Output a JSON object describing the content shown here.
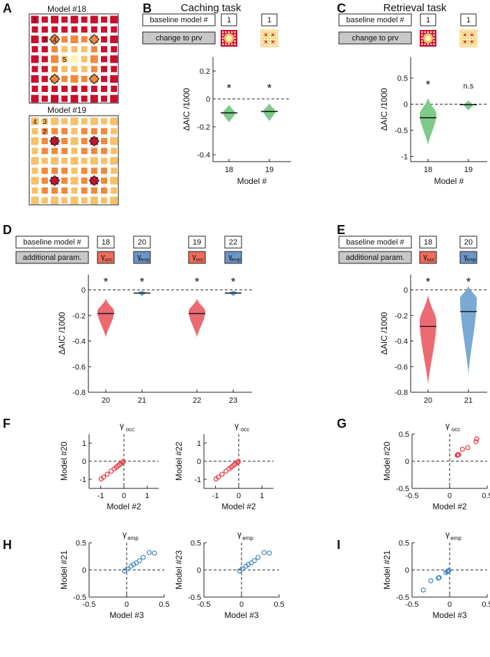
{
  "panel_labels": [
    "A",
    "B",
    "C",
    "D",
    "E",
    "F",
    "G",
    "H",
    "I"
  ],
  "colors": {
    "dark_red": "#c8102e",
    "orange": "#f0893b",
    "light_orange": "#f7c06a",
    "pale_yellow": "#fdf5b6",
    "violin_green": "#7fc98a",
    "violin_red": "#ec6b73",
    "violin_blue": "#7aaad3",
    "scatter_red": "#e8383f",
    "scatter_blue": "#3e86c2",
    "param_red": "#ee6c5a",
    "param_blue": "#6b96c8",
    "gray_box": "#c8c8c8",
    "mean_line": "#111111"
  },
  "panelA": {
    "model18": {
      "title": "Model #18",
      "labels": [
        "1",
        "2",
        "4",
        "5"
      ]
    },
    "model19": {
      "title": "Model #19",
      "labels": [
        "4",
        "3",
        "2"
      ]
    }
  },
  "panelB": {
    "title": "Caching task",
    "baseline_label": "baseline model #",
    "change_label": "change to prv",
    "baselines": [
      "1",
      "1"
    ]
  },
  "panelC": {
    "title": "Retrieval task",
    "baseline_label": "baseline model #",
    "change_label": "change to prv",
    "baselines": [
      "1",
      "1"
    ]
  },
  "panelD": {
    "baseline_label": "baseline model #",
    "param_label": "additional param.",
    "baselines": [
      "18",
      "20",
      "19",
      "22"
    ],
    "params": [
      {
        "base": "γ",
        "sub": "occ"
      },
      {
        "base": "γ",
        "sub": "emp"
      },
      {
        "base": "γ",
        "sub": "occ"
      },
      {
        "base": "γ",
        "sub": "emp"
      }
    ]
  },
  "panelE": {
    "baseline_label": "baseline model #",
    "param_label": "additional param.",
    "baselines": [
      "18",
      "20"
    ],
    "params": [
      {
        "base": "γ",
        "sub": "occ"
      },
      {
        "base": "γ",
        "sub": "emp"
      }
    ]
  },
  "chart_data": [
    {
      "id": "B",
      "type": "violin",
      "title": "Caching task",
      "xlabel": "Model #",
      "ylabel": "ΔAIC /1000",
      "ylim": [
        -0.45,
        0.3
      ],
      "yticks": [
        -0.4,
        -0.2,
        0,
        0.2
      ],
      "ytick_labels": [
        "-0.4",
        "-0.2",
        "0",
        "0.2"
      ],
      "categories": [
        "18",
        "19"
      ],
      "means": [
        -0.1,
        -0.09
      ],
      "mins": [
        -0.17,
        -0.16
      ],
      "maxs": [
        -0.04,
        -0.03
      ],
      "widest": [
        -0.1,
        -0.09
      ],
      "significance": [
        "*",
        "*"
      ]
    },
    {
      "id": "C",
      "type": "violin",
      "title": "Retrieval task",
      "xlabel": "Model #",
      "ylabel": "ΔAIC /1000",
      "ylim": [
        -1.1,
        0.9
      ],
      "yticks": [
        -1,
        -0.5,
        0,
        0.5
      ],
      "ytick_labels": [
        "-1",
        "-0.5",
        "0",
        "0.5"
      ],
      "categories": [
        "18",
        "19"
      ],
      "means": [
        -0.26,
        -0.01
      ],
      "mins": [
        -0.78,
        -0.12
      ],
      "maxs": [
        0.12,
        0.07
      ],
      "widest": [
        -0.2,
        -0.01
      ],
      "significance": [
        "*",
        "n.s"
      ]
    },
    {
      "id": "D",
      "type": "violin",
      "xlabel": "",
      "ylabel": "ΔAIC /1000",
      "ylim": [
        -0.8,
        0.12
      ],
      "yticks": [
        -0.8,
        -0.6,
        -0.4,
        -0.2,
        0
      ],
      "ytick_labels": [
        "-0.8",
        "-0.6",
        "-0.4",
        "-0.2",
        "0"
      ],
      "categories": [
        "20",
        "21",
        "22",
        "23"
      ],
      "means": [
        -0.185,
        -0.025,
        -0.185,
        -0.025
      ],
      "mins": [
        -0.37,
        -0.05,
        -0.37,
        -0.05
      ],
      "maxs": [
        -0.07,
        -0.005,
        -0.07,
        -0.005
      ],
      "widest": [
        -0.17,
        -0.02,
        -0.17,
        -0.02
      ],
      "significance": [
        "*",
        "*",
        "*",
        "*"
      ]
    },
    {
      "id": "E",
      "type": "violin",
      "xlabel": "",
      "ylabel": "ΔAIC /1000",
      "ylim": [
        -0.8,
        0.12
      ],
      "yticks": [
        -0.8,
        -0.6,
        -0.4,
        -0.2,
        0
      ],
      "ytick_labels": [
        "-0.8",
        "-0.6",
        "-0.4",
        "-0.2",
        "0"
      ],
      "categories": [
        "20",
        "21"
      ],
      "means": [
        -0.285,
        -0.17
      ],
      "mins": [
        -0.74,
        -0.66
      ],
      "maxs": [
        -0.04,
        0.03
      ],
      "widest": [
        -0.25,
        -0.07
      ],
      "significance": [
        "*",
        "*"
      ]
    },
    {
      "id": "F1",
      "type": "scatter",
      "title": {
        "base": "γ",
        "sub": "occ"
      },
      "xlabel": "Model #2",
      "ylabel": "Model #20",
      "xlim": [
        -1.5,
        1.5
      ],
      "ylim": [
        -1.5,
        1.5
      ],
      "xticks": [
        -1,
        0,
        1
      ],
      "xtick_labels": [
        "-1",
        "0",
        "1"
      ],
      "yticks": [
        -1,
        0,
        1
      ],
      "ytick_labels": [
        "-1",
        "0",
        "1"
      ],
      "x": [
        -0.98,
        -0.88,
        -0.72,
        -0.55,
        -0.42,
        -0.33,
        -0.25,
        -0.18,
        -0.12,
        -0.06,
        -0.02
      ],
      "y": [
        -0.98,
        -0.88,
        -0.72,
        -0.55,
        -0.42,
        -0.33,
        -0.25,
        -0.18,
        -0.12,
        -0.06,
        -0.02
      ]
    },
    {
      "id": "F2",
      "type": "scatter",
      "title": {
        "base": "γ",
        "sub": "occ"
      },
      "xlabel": "Model #2",
      "ylabel": "Model #22",
      "xlim": [
        -1.5,
        1.5
      ],
      "ylim": [
        -1.5,
        1.5
      ],
      "xticks": [
        -1,
        0,
        1
      ],
      "xtick_labels": [
        "-1",
        "0",
        "1"
      ],
      "yticks": [
        -1,
        0,
        1
      ],
      "ytick_labels": [
        "-1",
        "0",
        "1"
      ],
      "x": [
        -0.98,
        -0.88,
        -0.72,
        -0.55,
        -0.42,
        -0.33,
        -0.25,
        -0.18,
        -0.12,
        -0.06,
        -0.02
      ],
      "y": [
        -0.98,
        -0.88,
        -0.72,
        -0.55,
        -0.42,
        -0.33,
        -0.25,
        -0.18,
        -0.12,
        -0.06,
        -0.02
      ]
    },
    {
      "id": "G",
      "type": "scatter",
      "title": {
        "base": "γ",
        "sub": "occ"
      },
      "xlabel": "Model #2",
      "ylabel": "Model #20",
      "xlim": [
        -0.5,
        0.5
      ],
      "ylim": [
        -0.5,
        0.5
      ],
      "xticks": [
        -0.5,
        0,
        0.5
      ],
      "xtick_labels": [
        "-0.5",
        "0",
        "0.5"
      ],
      "yticks": [
        -0.5,
        0,
        0.5
      ],
      "ytick_labels": [
        "-0.5",
        "0",
        "0.5"
      ],
      "x": [
        0.1,
        0.11,
        0.12,
        0.17,
        0.24,
        0.35,
        0.36
      ],
      "y": [
        0.11,
        0.12,
        0.12,
        0.22,
        0.25,
        0.36,
        0.41
      ]
    },
    {
      "id": "H1",
      "type": "scatter",
      "title": {
        "base": "γ",
        "sub": "emp"
      },
      "xlabel": "Model #3",
      "ylabel": "Model #21",
      "xlim": [
        -0.5,
        0.5
      ],
      "ylim": [
        -0.5,
        0.5
      ],
      "xticks": [
        -0.5,
        0,
        0.5
      ],
      "xtick_labels": [
        "-0.5",
        "0",
        "0.5"
      ],
      "yticks": [
        -0.5,
        0,
        0.5
      ],
      "ytick_labels": [
        "-0.5",
        "0",
        "0.5"
      ],
      "x": [
        -0.03,
        0.01,
        0.06,
        0.09,
        0.13,
        0.17,
        0.22,
        0.3,
        0.37
      ],
      "y": [
        -0.02,
        0.02,
        0.07,
        0.1,
        0.13,
        0.17,
        0.23,
        0.32,
        0.31
      ]
    },
    {
      "id": "H2",
      "type": "scatter",
      "title": {
        "base": "γ",
        "sub": "emp"
      },
      "xlabel": "Model #3",
      "ylabel": "Model #23",
      "xlim": [
        -0.5,
        0.5
      ],
      "ylim": [
        -0.5,
        0.5
      ],
      "xticks": [
        -0.5,
        0,
        0.5
      ],
      "xtick_labels": [
        "-0.5",
        "0",
        "0.5"
      ],
      "yticks": [
        -0.5,
        0,
        0.5
      ],
      "ytick_labels": [
        "-0.5",
        "0",
        "0.5"
      ],
      "x": [
        -0.03,
        0.01,
        0.06,
        0.09,
        0.13,
        0.17,
        0.22,
        0.3,
        0.37
      ],
      "y": [
        -0.02,
        0.02,
        0.07,
        0.1,
        0.13,
        0.17,
        0.23,
        0.32,
        0.31
      ]
    },
    {
      "id": "I",
      "type": "scatter",
      "title": {
        "base": "γ",
        "sub": "emp"
      },
      "xlabel": "Model #3",
      "ylabel": "Model #21",
      "xlim": [
        -0.5,
        0.5
      ],
      "ylim": [
        -0.5,
        0.5
      ],
      "xticks": [
        -0.5,
        0,
        0.5
      ],
      "xtick_labels": [
        "-0.5",
        "0",
        "0.5"
      ],
      "yticks": [
        -0.5,
        0,
        0.5
      ],
      "ytick_labels": [
        "-0.5",
        "0",
        "0.5"
      ],
      "x": [
        -0.35,
        -0.25,
        -0.15,
        -0.14,
        -0.05,
        -0.03,
        -0.02,
        -0.01
      ],
      "y": [
        -0.37,
        -0.2,
        -0.15,
        -0.14,
        -0.05,
        -0.03,
        -0.02,
        -0.01
      ]
    }
  ]
}
